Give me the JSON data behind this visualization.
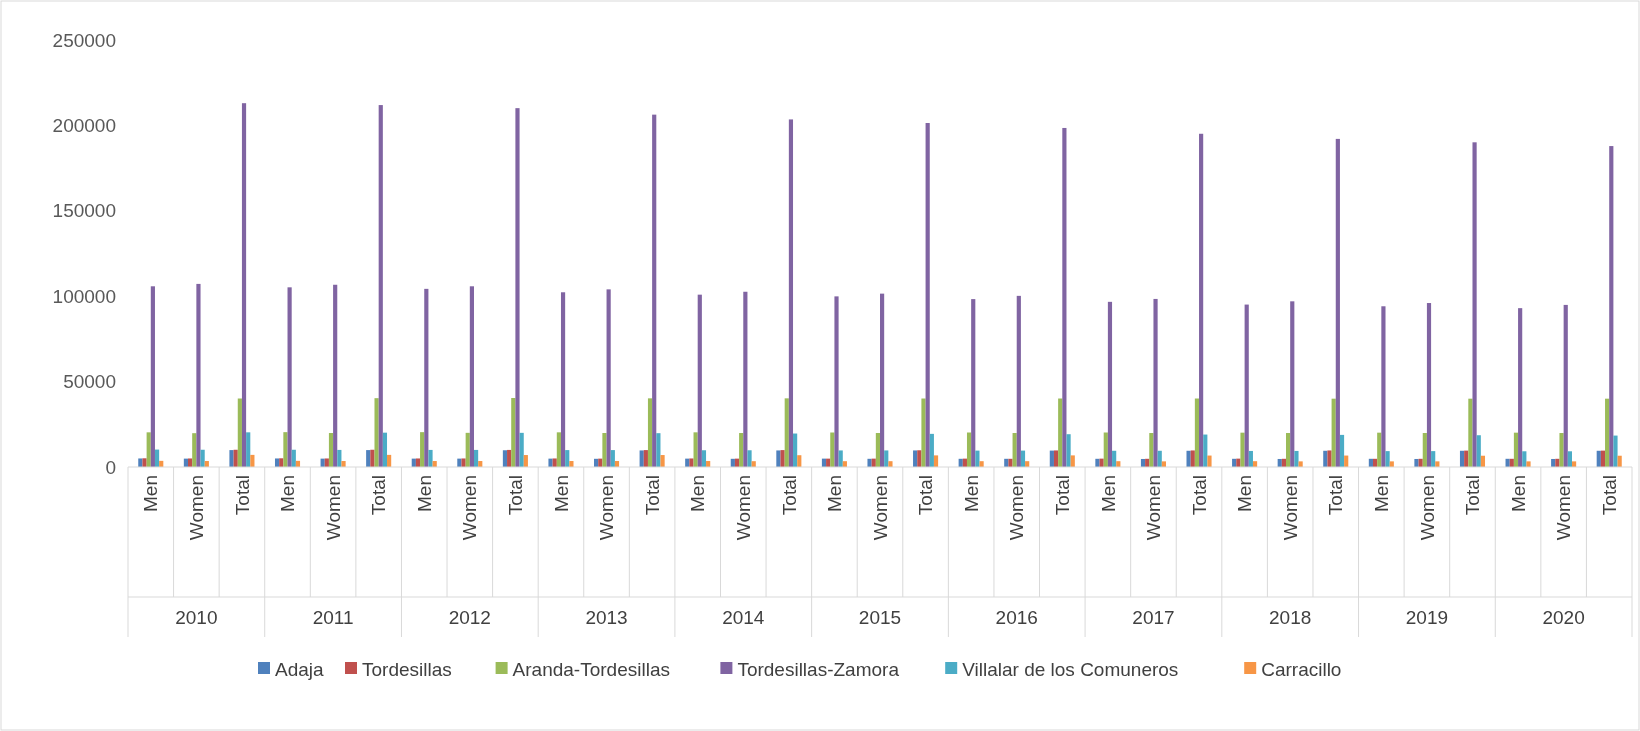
{
  "chart_data": {
    "type": "bar",
    "categories": [
      "Men",
      "Women",
      "Total",
      "Men",
      "Women",
      "Total",
      "Men",
      "Women",
      "Total",
      "Men",
      "Women",
      "Total",
      "Men",
      "Women",
      "Total",
      "Men",
      "Women",
      "Total",
      "Men",
      "Women",
      "Total",
      "Men",
      "Women",
      "Total",
      "Men",
      "Women",
      "Total",
      "Men",
      "Women",
      "Total",
      "Men",
      "Women",
      "Total"
    ],
    "annotations": [
      "2010",
      "2011",
      "2012",
      "2013",
      "2014",
      "2015",
      "2016",
      "2017",
      "2018",
      "2019",
      "2020"
    ],
    "ylim": [
      0,
      250000
    ],
    "yticks": [
      0,
      50000,
      100000,
      150000,
      200000,
      250000
    ],
    "grid": false,
    "legend": "bottom",
    "series": [
      {
        "name": "Adaja",
        "color": "#4f81bd",
        "values": [
          5000,
          4900,
          9900,
          5000,
          4900,
          9900,
          4900,
          4900,
          9800,
          4900,
          4800,
          9700,
          4900,
          4800,
          9700,
          4900,
          4800,
          9700,
          4800,
          4800,
          9600,
          4800,
          4700,
          9500,
          4800,
          4700,
          9500,
          4800,
          4700,
          9500,
          4800,
          4700,
          9500
        ]
      },
      {
        "name": "Tordesillas",
        "color": "#c0504d",
        "values": [
          5100,
          5000,
          10100,
          5100,
          5000,
          10100,
          5000,
          5000,
          10000,
          5000,
          4900,
          9900,
          5000,
          4900,
          9900,
          4900,
          4900,
          9800,
          4900,
          4800,
          9700,
          4900,
          4800,
          9700,
          4900,
          4800,
          9700,
          4800,
          4800,
          9600,
          4800,
          4800,
          9600
        ]
      },
      {
        "name": "Aranda-Tordesillas",
        "color": "#9bbb59",
        "values": [
          20300,
          19800,
          40100,
          20400,
          19900,
          40300,
          20400,
          20000,
          40400,
          20300,
          19900,
          40200,
          20300,
          19900,
          40200,
          20200,
          19900,
          40100,
          20200,
          19900,
          40100,
          20200,
          19900,
          40100,
          20100,
          19900,
          40000,
          20100,
          19900,
          40000,
          20100,
          19900,
          40000
        ]
      },
      {
        "name": "Tordesillas-Zamora",
        "color": "#8064a2",
        "values": [
          105800,
          107200,
          213000,
          105200,
          106700,
          211900,
          104300,
          105800,
          210100,
          102300,
          104000,
          206300,
          100900,
          102600,
          203500,
          99900,
          101500,
          201400,
          98300,
          100200,
          198500,
          96700,
          98400,
          195100,
          95100,
          97000,
          192100,
          94100,
          96000,
          190100,
          93000,
          94900,
          187900
        ]
      },
      {
        "name": "Villalar de los Comuneros",
        "color": "#4bacc6",
        "values": [
          10200,
          10100,
          20300,
          10100,
          10000,
          20100,
          10000,
          10000,
          20000,
          9900,
          9900,
          19800,
          9800,
          9800,
          19600,
          9700,
          9700,
          19400,
          9600,
          9600,
          19200,
          9500,
          9500,
          19000,
          9400,
          9400,
          18800,
          9300,
          9300,
          18600,
          9200,
          9200,
          18400
        ]
      },
      {
        "name": "Carracillo",
        "color": "#f79646",
        "values": [
          3600,
          3500,
          7100,
          3600,
          3500,
          7100,
          3500,
          3500,
          7000,
          3500,
          3500,
          7000,
          3500,
          3400,
          6900,
          3400,
          3400,
          6800,
          3400,
          3400,
          6800,
          3400,
          3300,
          6700,
          3400,
          3300,
          6700,
          3300,
          3300,
          6600,
          3300,
          3300,
          6600
        ]
      }
    ]
  }
}
